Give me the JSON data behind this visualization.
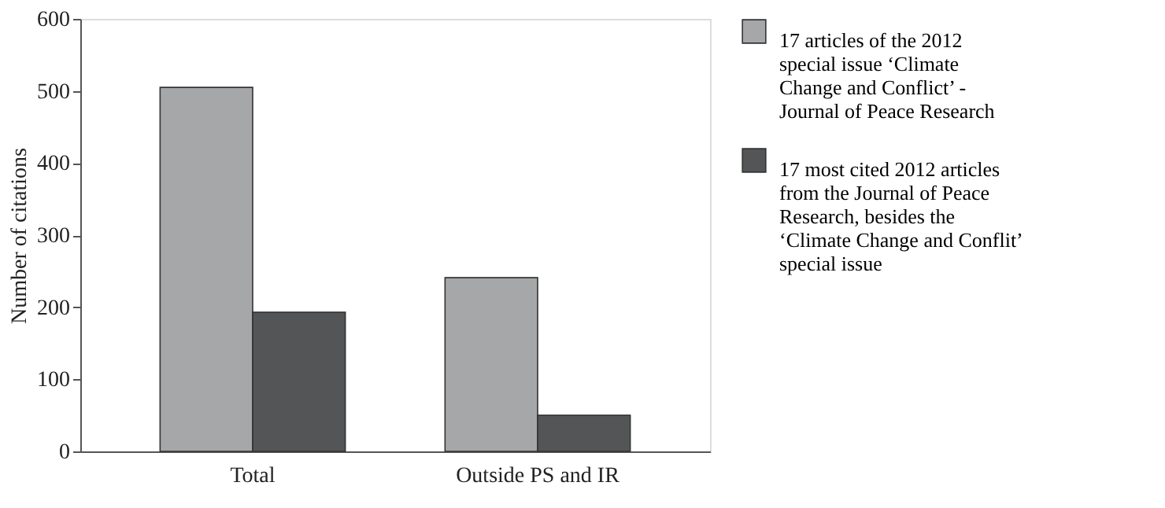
{
  "chart_data": {
    "type": "bar",
    "ylabel": "Number of citations",
    "categories": [
      "Total",
      "Outside PS and IR"
    ],
    "series": [
      {
        "name": "17 articles of the 2012 special issue ‘Climate Change and Conflict’ - Journal of Peace Research",
        "color": "#a6a7a9",
        "values": [
          505,
          241
        ]
      },
      {
        "name": "17 most cited 2012 articles from the Journal of Peace Research, besides the ‘Climate Change and Conflit’ special issue",
        "color": "#545556",
        "values": [
          193,
          50
        ]
      }
    ],
    "ylim": [
      0,
      600
    ],
    "yticks": [
      0,
      100,
      200,
      300,
      400,
      500,
      600
    ],
    "grid": false,
    "legend": "right"
  }
}
